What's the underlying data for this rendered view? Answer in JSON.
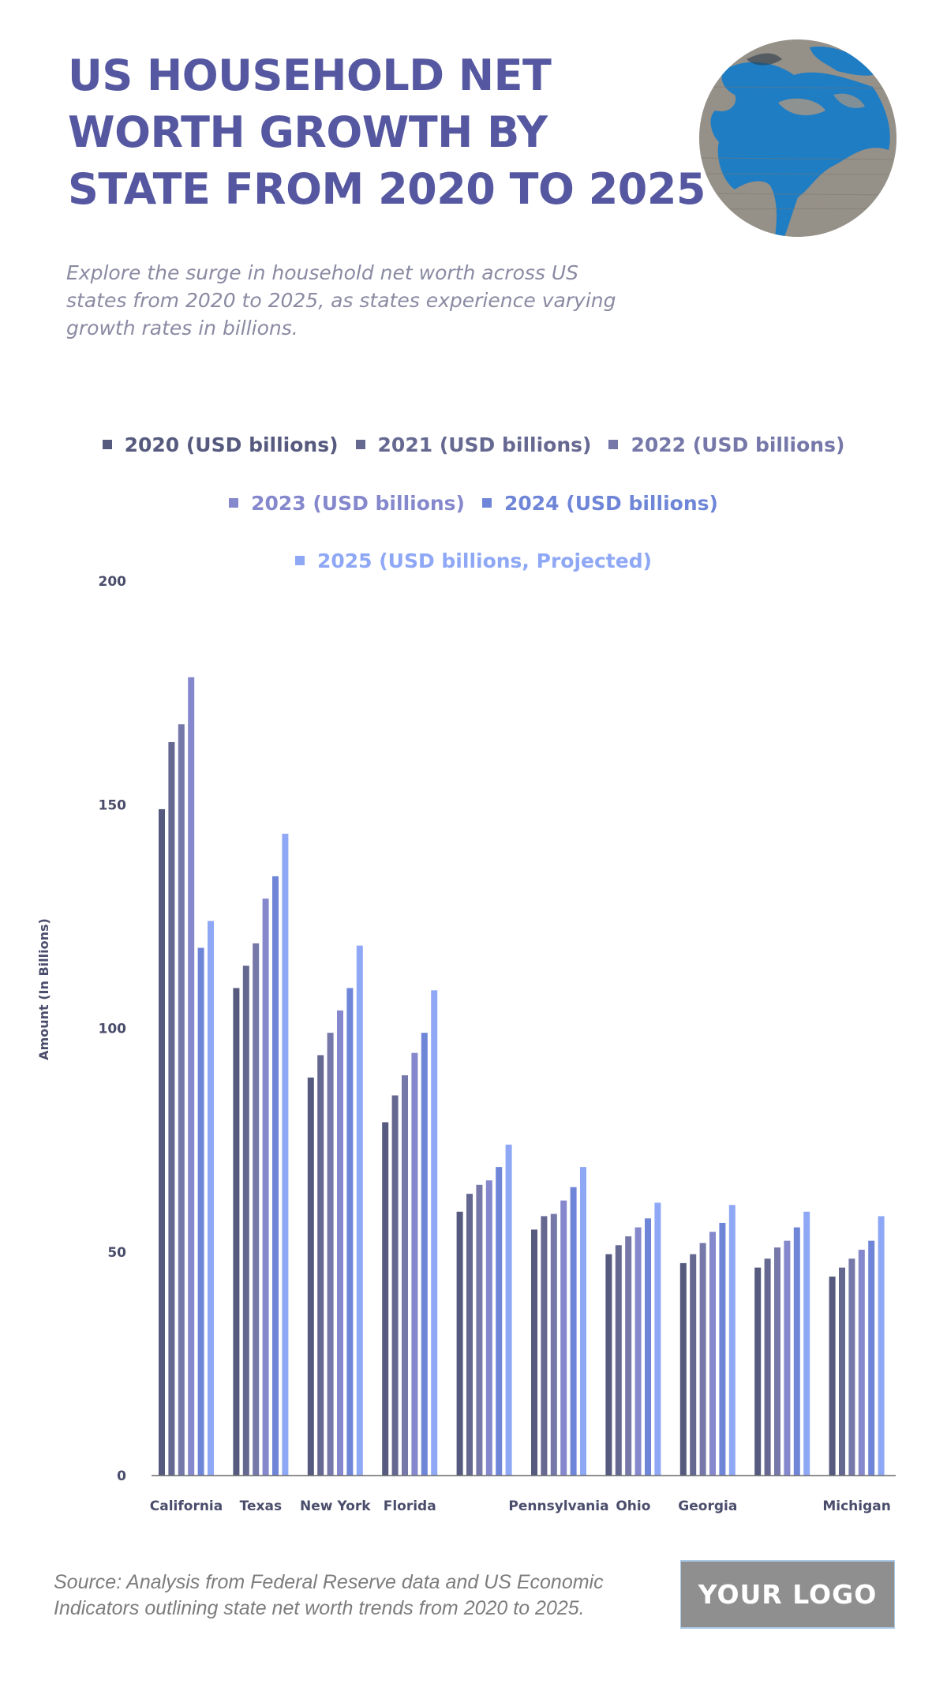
{
  "header": {
    "title_lines": [
      "US HOUSEHOLD NET",
      "WORTH GROWTH BY",
      "STATE FROM 2020 TO 2025"
    ],
    "subtitle_lines": [
      "Explore the surge in household net worth across US",
      "states from 2020 to 2025, as states experience varying",
      "growth rates in billions."
    ],
    "image_icon": "globe-texture-image"
  },
  "legend": {
    "rows": [
      [
        {
          "label": "2020 (USD billions)",
          "color": "#555a7e"
        },
        {
          "label": "2021 (USD billions)",
          "color": "#656890"
        },
        {
          "label": "2022 (USD billions)",
          "color": "#7578a8"
        }
      ],
      [
        {
          "label": "2023 (USD billions)",
          "color": "#8588cc"
        },
        {
          "label": "2024 (USD billions)",
          "color": "#6f86d8"
        }
      ],
      [
        {
          "label": "2025 (USD billions, Projected)",
          "color": "#8ea8f5"
        }
      ]
    ]
  },
  "chart_data": {
    "type": "bar",
    "title": "US HOUSEHOLD NET WORTH GROWTH BY STATE FROM 2020 TO 2025",
    "xlabel": "",
    "ylabel": "Amount (In Billions)",
    "ylim": [
      0,
      200
    ],
    "yticks": [
      0,
      50,
      100,
      150,
      200
    ],
    "grid": false,
    "legend_position": "top",
    "categories": [
      "California",
      "Texas",
      "New York",
      "Florida",
      "",
      "Pennsylvania",
      "Ohio",
      "Georgia",
      "",
      "Michigan"
    ],
    "series": [
      {
        "name": "2020 (USD billions)",
        "color": "#555a7e",
        "values": [
          149,
          109,
          89,
          79,
          59,
          55,
          49.5,
          47.5,
          46.5,
          44.5
        ]
      },
      {
        "name": "2021 (USD billions)",
        "color": "#656890",
        "values": [
          164,
          114,
          94,
          85,
          63,
          58,
          51.5,
          49.5,
          48.5,
          46.5
        ]
      },
      {
        "name": "2022 (USD billions)",
        "color": "#7578a8",
        "values": [
          168,
          119,
          99,
          89.5,
          65,
          58.5,
          53.5,
          52,
          51,
          48.5
        ]
      },
      {
        "name": "2023 (USD billions)",
        "color": "#8588cc",
        "values": [
          178.5,
          129,
          104,
          94.5,
          66,
          61.5,
          55.5,
          54.5,
          52.5,
          50.5
        ]
      },
      {
        "name": "2024 (USD billions)",
        "color": "#6f86d8",
        "values": [
          118,
          134,
          109,
          99,
          69,
          64.5,
          57.5,
          56.5,
          55.5,
          52.5
        ]
      },
      {
        "name": "2025 (USD billions, Projected)",
        "color": "#8ea8f5",
        "values": [
          124,
          143.5,
          118.5,
          108.5,
          74,
          69,
          61,
          60.5,
          59,
          58
        ]
      }
    ]
  },
  "footer": {
    "source_lines": [
      "Source: Analysis from Federal Reserve data and US Economic",
      "Indicators outlining state net worth trends from 2020 to 2025."
    ],
    "logo_text": "YOUR LOGO"
  }
}
